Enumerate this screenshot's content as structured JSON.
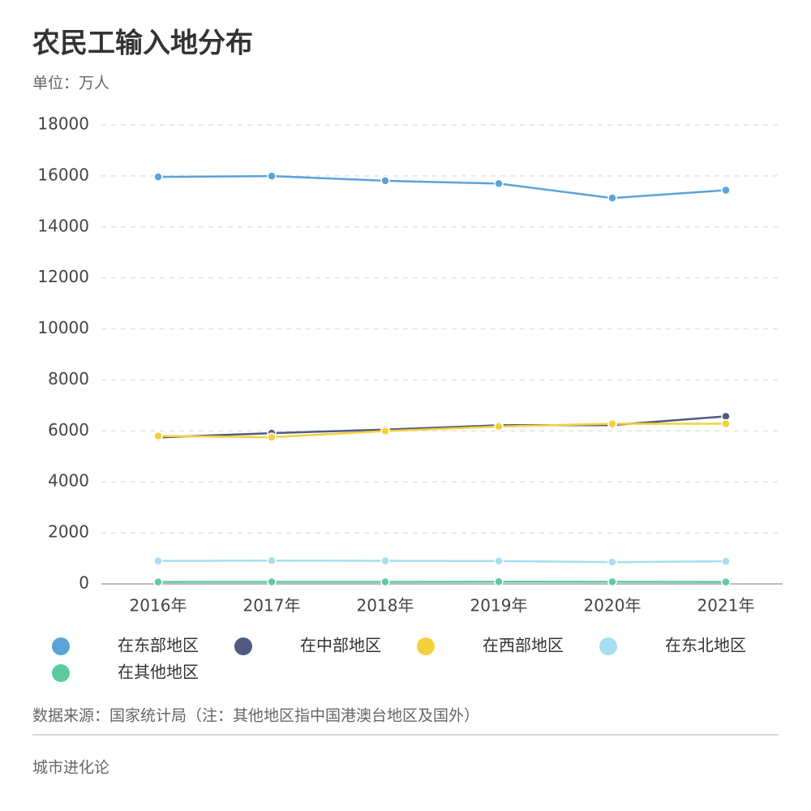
{
  "chart_data": {
    "type": "line",
    "title": "农民工输入地分布",
    "subtitle": "单位：万人",
    "categories": [
      "2016年",
      "2017年",
      "2018年",
      "2019年",
      "2020年",
      "2021年"
    ],
    "series": [
      {
        "name": "在东部地区",
        "color": "#5ba3d9",
        "values": [
          15960,
          15993,
          15808,
          15700,
          15132,
          15438
        ]
      },
      {
        "name": "在中部地区",
        "color": "#4f5b80",
        "values": [
          5746,
          5912,
          6051,
          6223,
          6227,
          6571
        ]
      },
      {
        "name": "在西部地区",
        "color": "#f5d03c",
        "values": [
          5798,
          5754,
          5993,
          6173,
          6279,
          6280
        ]
      },
      {
        "name": "在东北地区",
        "color": "#a8dcf0",
        "values": [
          904,
          914,
          905,
          895,
          853,
          888
        ]
      },
      {
        "name": "在其他地区",
        "color": "#5dcba0",
        "values": [
          77,
          79,
          80,
          86,
          85,
          75
        ]
      }
    ],
    "ylim": [
      0,
      18000
    ],
    "yticks": [
      0,
      2000,
      4000,
      6000,
      8000,
      10000,
      12000,
      14000,
      16000,
      18000
    ],
    "grid": true,
    "source": "数据来源：国家统计局（注：其他地区指中国港澳台地区及国外）",
    "footer": "城市进化论"
  }
}
